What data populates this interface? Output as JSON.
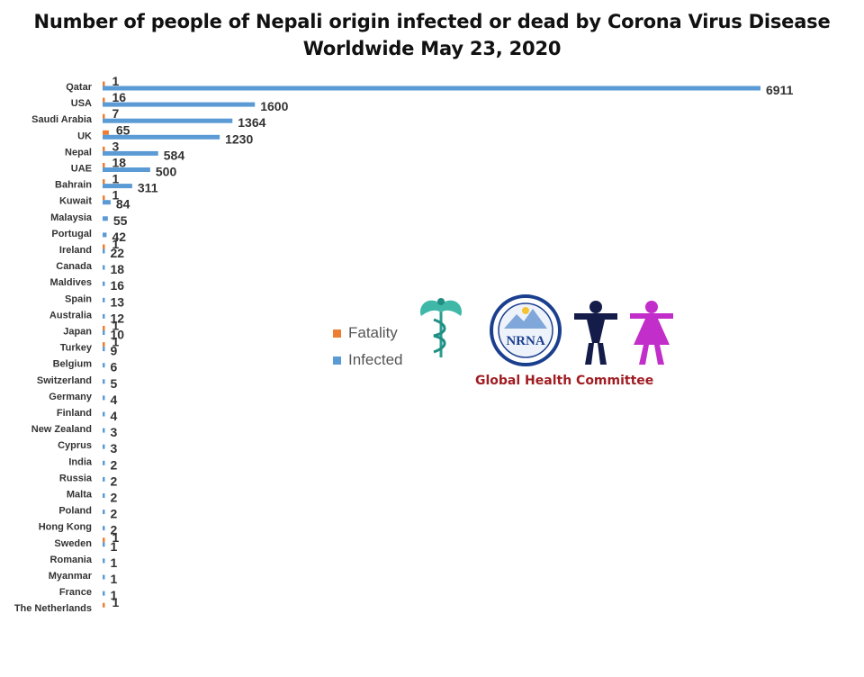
{
  "title_line1": "Number of people of Nepali origin infected or dead by Corona Virus Disease",
  "title_line2": "Worldwide May 23, 2020",
  "committee": "Global Health Committee",
  "logo_text": "NRNA",
  "colors": {
    "fatality": "#ED7D31",
    "infected": "#5B9BD5",
    "committee": "#a01c22"
  },
  "chart_data": {
    "type": "bar",
    "orientation": "horizontal",
    "title": "Number of people of Nepali origin infected or dead by Corona Virus Disease Worldwide May 23, 2020",
    "categories": [
      "Qatar",
      "USA",
      "Saudi Arabia",
      "UK",
      "Nepal",
      "UAE",
      "Bahrain",
      "Kuwait",
      "Malaysia",
      "Portugal",
      "Ireland",
      "Canada",
      "Maldives",
      "Spain",
      "Australia",
      "Japan",
      "Turkey",
      "Belgium",
      "Switzerland",
      "Germany",
      "Finland",
      "New Zealand",
      "Cyprus",
      "India",
      "Russia",
      "Malta",
      "Poland",
      "Hong Kong",
      "Sweden",
      "Romania",
      "Myanmar",
      "France",
      "The Netherlands"
    ],
    "series": [
      {
        "name": "Fatality",
        "values": [
          1,
          16,
          7,
          65,
          3,
          18,
          1,
          1,
          null,
          null,
          1,
          null,
          null,
          null,
          null,
          1,
          1,
          null,
          null,
          null,
          null,
          null,
          null,
          null,
          null,
          null,
          null,
          null,
          1,
          null,
          null,
          null,
          1
        ]
      },
      {
        "name": "Infected",
        "values": [
          6911,
          1600,
          1364,
          1230,
          584,
          500,
          311,
          84,
          55,
          42,
          22,
          18,
          16,
          13,
          12,
          10,
          9,
          6,
          5,
          4,
          4,
          3,
          3,
          2,
          2,
          2,
          2,
          2,
          1,
          1,
          1,
          1,
          null
        ]
      }
    ],
    "xlim": [
      0,
      6911
    ],
    "legend": "center",
    "grid": false
  }
}
